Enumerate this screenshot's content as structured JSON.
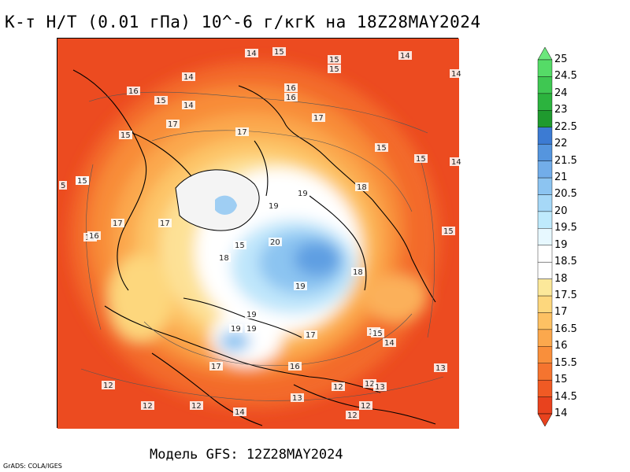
{
  "title": "К-т Н/Т (0.01 гПа) 10^-6 г/кгК на 18Z28MAY2024",
  "footer": "Модель GFS: 12Z28MAY2024",
  "credit": "GrADS: COLA/IGES",
  "colorbar": {
    "levels": [
      "14",
      "14.5",
      "15",
      "15.5",
      "16",
      "16.5",
      "17",
      "17.5",
      "18",
      "18.5",
      "19",
      "19.5",
      "20",
      "20.5",
      "21",
      "21.5",
      "22",
      "22.5",
      "23",
      "24",
      "24.5",
      "25"
    ],
    "colors": [
      "#e8421e",
      "#f05a24",
      "#f5742f",
      "#f98f3b",
      "#fba84d",
      "#fdc163",
      "#fdd77d",
      "#fce89a",
      "#ffffff",
      "#ffffff",
      "#e7f8ff",
      "#bfeafc",
      "#a6d8f7",
      "#8cc4f1",
      "#72ade9",
      "#5595de",
      "#3c7bd3",
      "#1f9a2e",
      "#2cb33e",
      "#3fc752",
      "#55db67"
    ],
    "top_color": "#6ce77c",
    "bottom_color": "#e8421e"
  },
  "map": {
    "labels": [
      {
        "t": "14"
      },
      {
        "t": "15"
      },
      {
        "t": "15"
      },
      {
        "t": "14"
      },
      {
        "t": "14"
      },
      {
        "t": "14"
      },
      {
        "t": "16"
      },
      {
        "t": "15"
      },
      {
        "t": "14"
      },
      {
        "t": "16"
      },
      {
        "t": "16"
      },
      {
        "t": "15"
      },
      {
        "t": "17"
      },
      {
        "t": "17"
      },
      {
        "t": "15"
      },
      {
        "t": "17"
      },
      {
        "t": "15"
      },
      {
        "t": "15"
      },
      {
        "t": "15"
      },
      {
        "t": "14"
      },
      {
        "t": "5"
      },
      {
        "t": "15"
      },
      {
        "t": "19"
      },
      {
        "t": "18"
      },
      {
        "t": "19"
      },
      {
        "t": "15"
      },
      {
        "t": "17"
      },
      {
        "t": "17"
      },
      {
        "t": "15"
      },
      {
        "t": "15"
      },
      {
        "t": "16"
      },
      {
        "t": "18"
      },
      {
        "t": "20"
      },
      {
        "t": "19"
      },
      {
        "t": "18"
      },
      {
        "t": "19"
      },
      {
        "t": "15"
      },
      {
        "t": "19"
      },
      {
        "t": "19"
      },
      {
        "t": "17"
      },
      {
        "t": "15"
      },
      {
        "t": "14"
      },
      {
        "t": "17"
      },
      {
        "t": "16"
      },
      {
        "t": "13"
      },
      {
        "t": "12"
      },
      {
        "t": "12"
      },
      {
        "t": "12"
      },
      {
        "t": "14"
      },
      {
        "t": "13"
      },
      {
        "t": "12"
      },
      {
        "t": "12"
      },
      {
        "t": "12"
      },
      {
        "t": "13"
      },
      {
        "t": "12"
      }
    ]
  }
}
